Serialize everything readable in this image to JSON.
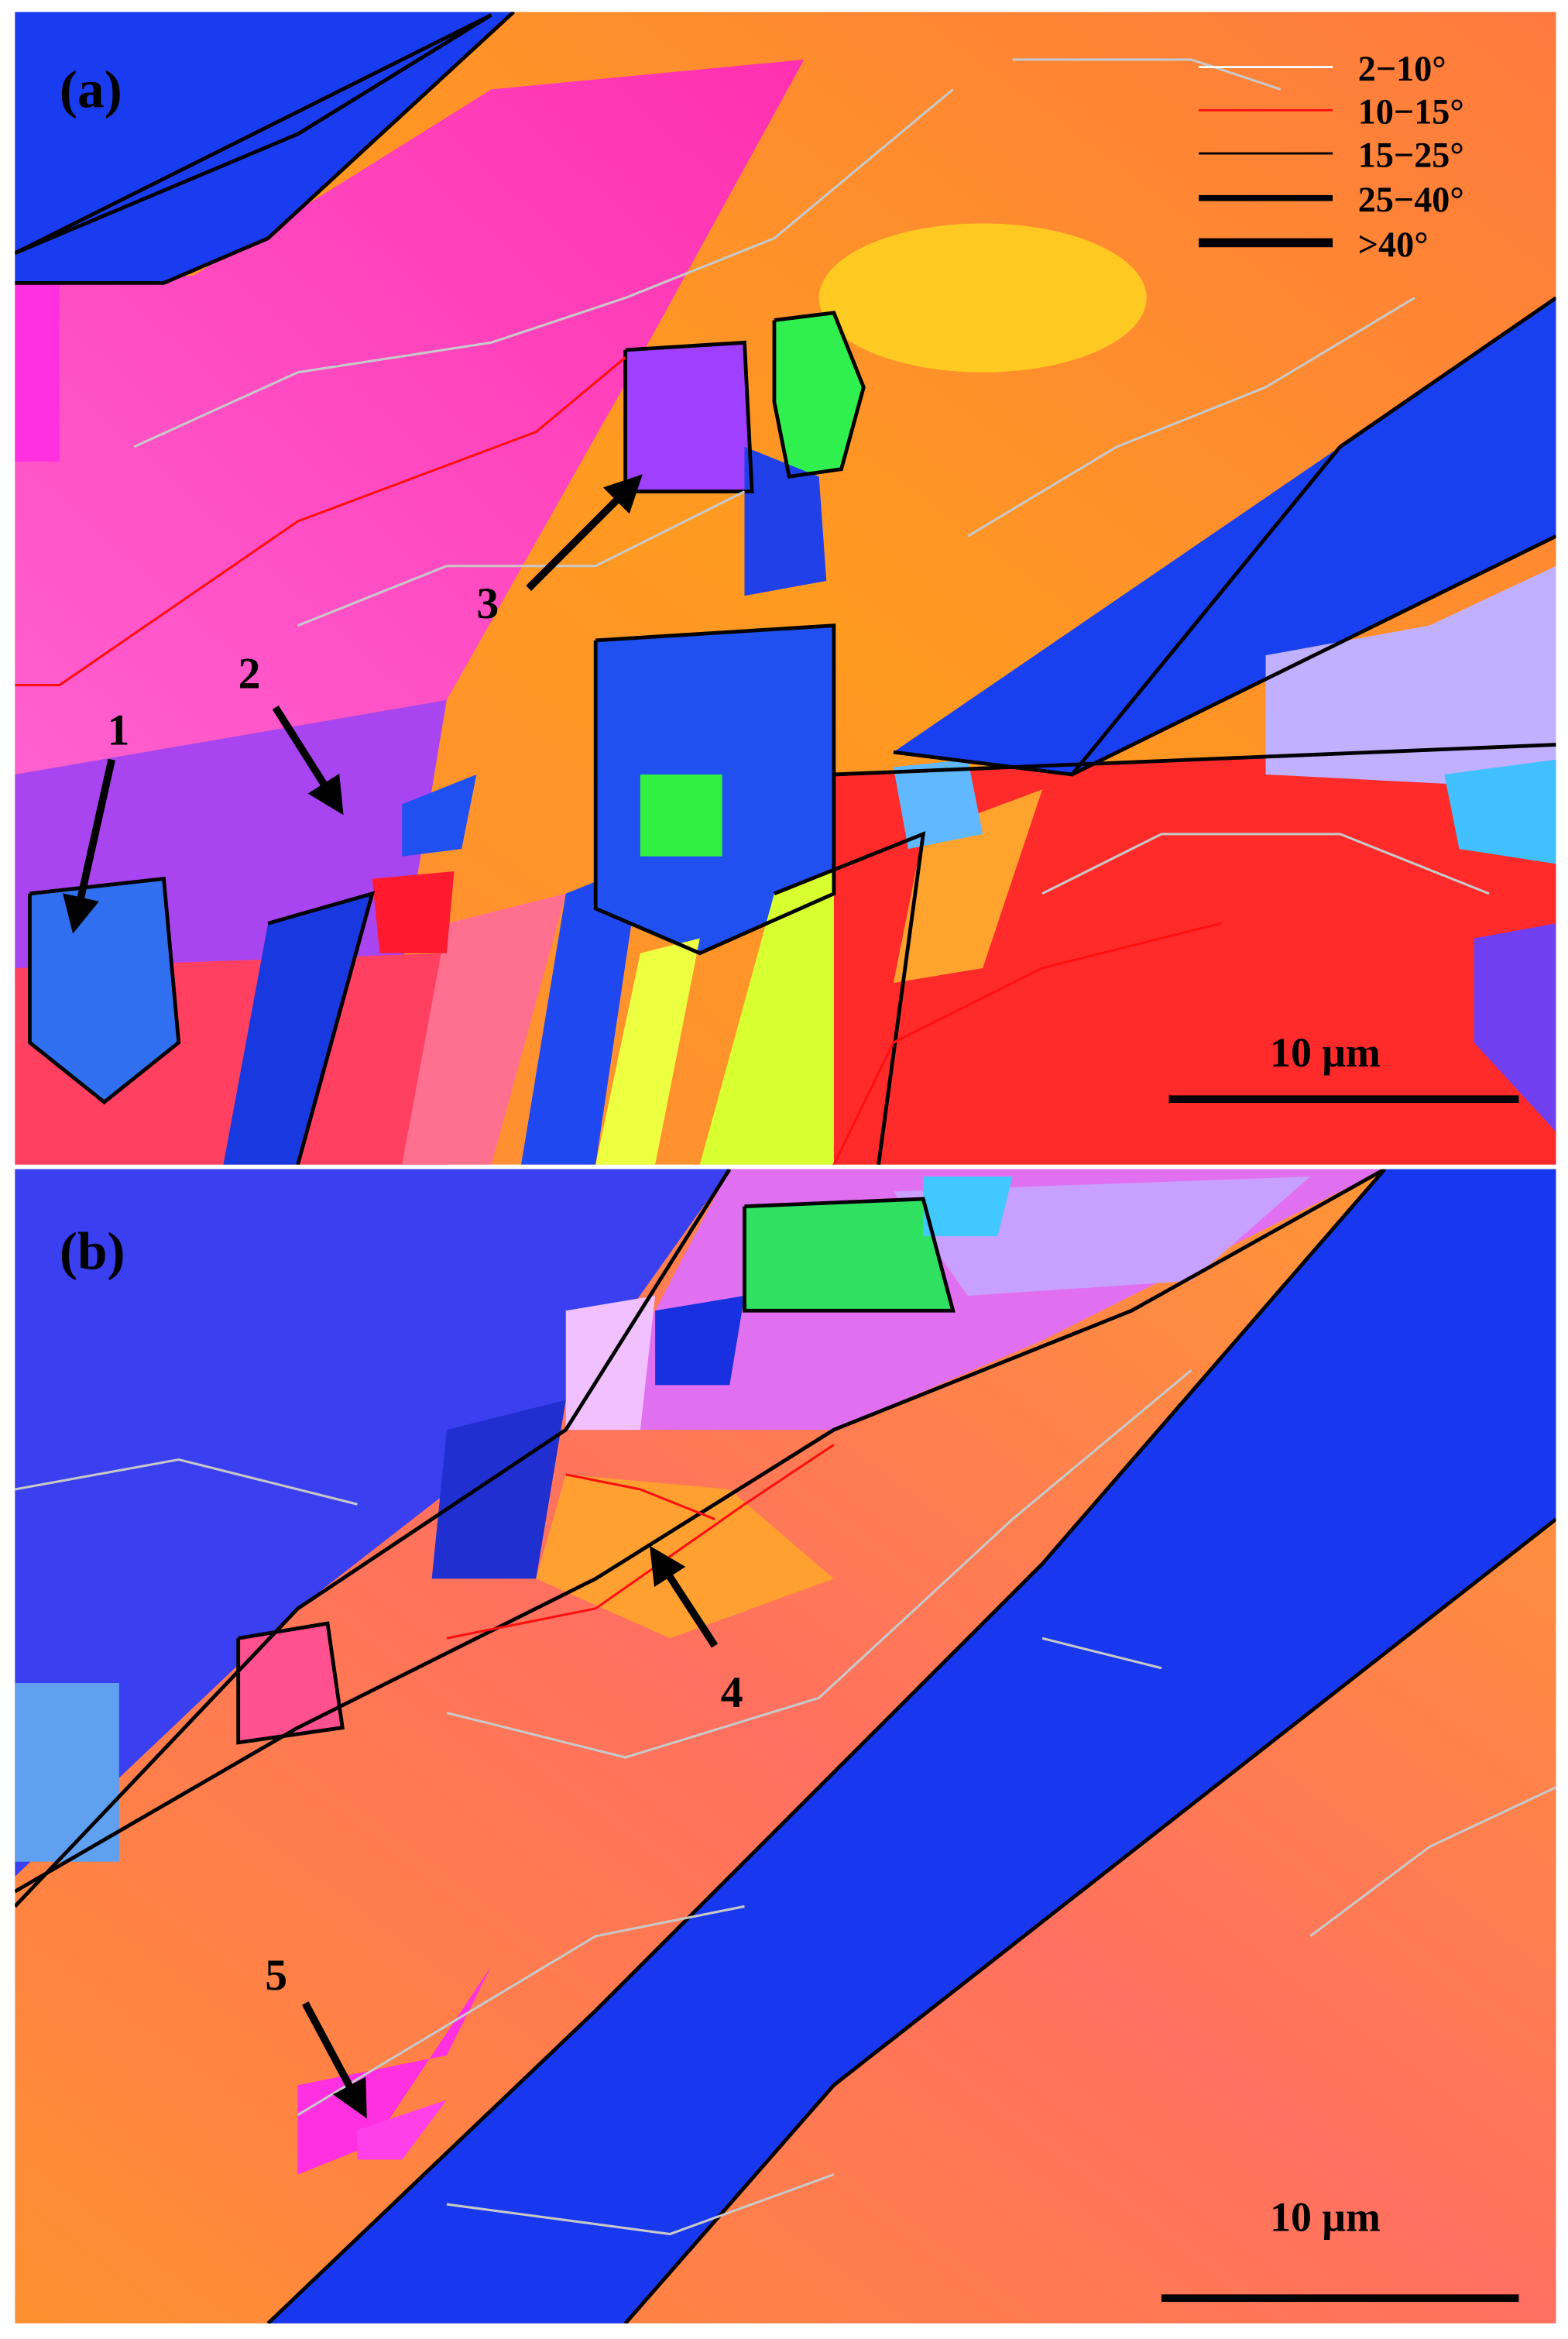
{
  "panels": [
    {
      "label": "(a)",
      "legend": [
        "2−10°",
        "10−15°",
        "15−25°",
        "25−40°",
        ">40°"
      ],
      "annotations": [
        "1",
        "2",
        "3"
      ],
      "scale_bar": "10 μm"
    },
    {
      "label": "(b)",
      "annotations": [
        "4",
        "5"
      ],
      "scale_bar": "10 μm"
    }
  ]
}
